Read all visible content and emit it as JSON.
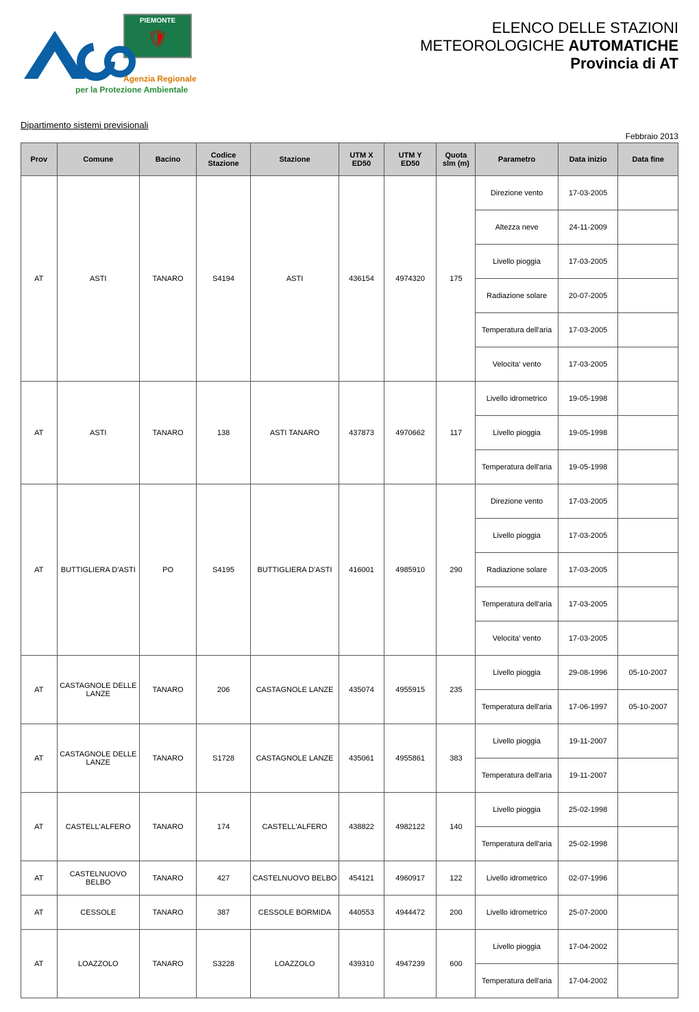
{
  "logo": {
    "flag_label": "PIEMONTE",
    "agency_line1": "Agenzia Regionale",
    "agency_line2": "per la Protezione Ambientale",
    "arpa_fill": "#0b5fa5",
    "flag_bg": "#1a7a4a",
    "text1_color": "#d97800",
    "text2_color": "#2a8c3a"
  },
  "title": {
    "line1": "ELENCO DELLE STAZIONI",
    "line2_normal": "METEOROLOGICHE ",
    "line2_bold": "AUTOMATICHE",
    "line3": "Provincia di AT"
  },
  "department": "Dipartimento sistemi previsionali",
  "period_label": "Febbraio 2013",
  "table": {
    "header_bg": "#cccccc",
    "border_color": "#555555",
    "columns": [
      {
        "key": "prov",
        "label": "Prov"
      },
      {
        "key": "comune",
        "label": "Comune"
      },
      {
        "key": "bacino",
        "label": "Bacino"
      },
      {
        "key": "codice",
        "label": "Codice\nStazione"
      },
      {
        "key": "stazione",
        "label": "Stazione"
      },
      {
        "key": "utmx",
        "label": "UTM X\nED50"
      },
      {
        "key": "utmy",
        "label": "UTM Y\nED50"
      },
      {
        "key": "quota",
        "label": "Quota\nslm (m)"
      },
      {
        "key": "param",
        "label": "Parametro"
      },
      {
        "key": "inizio",
        "label": "Data inizio"
      },
      {
        "key": "fine",
        "label": "Data fine"
      }
    ],
    "stations": [
      {
        "prov": "AT",
        "comune": "ASTI",
        "bacino": "TANARO",
        "codice": "S4194",
        "stazione": "ASTI",
        "utmx": "436154",
        "utmy": "4974320",
        "quota": "175",
        "params": [
          {
            "parametro": "Direzione vento",
            "inizio": "17-03-2005",
            "fine": ""
          },
          {
            "parametro": "Altezza neve",
            "inizio": "24-11-2009",
            "fine": ""
          },
          {
            "parametro": "Livello pioggia",
            "inizio": "17-03-2005",
            "fine": ""
          },
          {
            "parametro": "Radiazione solare",
            "inizio": "20-07-2005",
            "fine": ""
          },
          {
            "parametro": "Temperatura dell'aria",
            "inizio": "17-03-2005",
            "fine": ""
          },
          {
            "parametro": "Velocita' vento",
            "inizio": "17-03-2005",
            "fine": ""
          }
        ]
      },
      {
        "prov": "AT",
        "comune": "ASTI",
        "bacino": "TANARO",
        "codice": "138",
        "stazione": "ASTI TANARO",
        "utmx": "437873",
        "utmy": "4970662",
        "quota": "117",
        "params": [
          {
            "parametro": "Livello idrometrico",
            "inizio": "19-05-1998",
            "fine": ""
          },
          {
            "parametro": "Livello pioggia",
            "inizio": "19-05-1998",
            "fine": ""
          },
          {
            "parametro": "Temperatura dell'aria",
            "inizio": "19-05-1998",
            "fine": ""
          }
        ]
      },
      {
        "prov": "AT",
        "comune": "BUTTIGLIERA D'ASTI",
        "bacino": "PO",
        "codice": "S4195",
        "stazione": "BUTTIGLIERA D'ASTI",
        "utmx": "416001",
        "utmy": "4985910",
        "quota": "290",
        "params": [
          {
            "parametro": "Direzione vento",
            "inizio": "17-03-2005",
            "fine": ""
          },
          {
            "parametro": "Livello pioggia",
            "inizio": "17-03-2005",
            "fine": ""
          },
          {
            "parametro": "Radiazione solare",
            "inizio": "17-03-2005",
            "fine": ""
          },
          {
            "parametro": "Temperatura dell'aria",
            "inizio": "17-03-2005",
            "fine": ""
          },
          {
            "parametro": "Velocita' vento",
            "inizio": "17-03-2005",
            "fine": ""
          }
        ]
      },
      {
        "prov": "AT",
        "comune": "CASTAGNOLE DELLE LANZE",
        "bacino": "TANARO",
        "codice": "206",
        "stazione": "CASTAGNOLE LANZE",
        "utmx": "435074",
        "utmy": "4955915",
        "quota": "235",
        "params": [
          {
            "parametro": "Livello pioggia",
            "inizio": "29-08-1996",
            "fine": "05-10-2007"
          },
          {
            "parametro": "Temperatura dell'aria",
            "inizio": "17-06-1997",
            "fine": "05-10-2007"
          }
        ]
      },
      {
        "prov": "AT",
        "comune": "CASTAGNOLE DELLE LANZE",
        "bacino": "TANARO",
        "codice": "S1728",
        "stazione": "CASTAGNOLE LANZE",
        "utmx": "435061",
        "utmy": "4955861",
        "quota": "383",
        "params": [
          {
            "parametro": "Livello pioggia",
            "inizio": "19-11-2007",
            "fine": ""
          },
          {
            "parametro": "Temperatura dell'aria",
            "inizio": "19-11-2007",
            "fine": ""
          }
        ]
      },
      {
        "prov": "AT",
        "comune": "CASTELL'ALFERO",
        "bacino": "TANARO",
        "codice": "174",
        "stazione": "CASTELL'ALFERO",
        "utmx": "438822",
        "utmy": "4982122",
        "quota": "140",
        "params": [
          {
            "parametro": "Livello pioggia",
            "inizio": "25-02-1998",
            "fine": ""
          },
          {
            "parametro": "Temperatura dell'aria",
            "inizio": "25-02-1998",
            "fine": ""
          }
        ]
      },
      {
        "prov": "AT",
        "comune": "CASTELNUOVO BELBO",
        "bacino": "TANARO",
        "codice": "427",
        "stazione": "CASTELNUOVO BELBO",
        "utmx": "454121",
        "utmy": "4960917",
        "quota": "122",
        "params": [
          {
            "parametro": "Livello idrometrico",
            "inizio": "02-07-1996",
            "fine": ""
          }
        ]
      },
      {
        "prov": "AT",
        "comune": "CESSOLE",
        "bacino": "TANARO",
        "codice": "387",
        "stazione": "CESSOLE BORMIDA",
        "utmx": "440553",
        "utmy": "4944472",
        "quota": "200",
        "params": [
          {
            "parametro": "Livello idrometrico",
            "inizio": "25-07-2000",
            "fine": ""
          }
        ]
      },
      {
        "prov": "AT",
        "comune": "LOAZZOLO",
        "bacino": "TANARO",
        "codice": "S3228",
        "stazione": "LOAZZOLO",
        "utmx": "439310",
        "utmy": "4947239",
        "quota": "600",
        "params": [
          {
            "parametro": "Livello pioggia",
            "inizio": "17-04-2002",
            "fine": ""
          },
          {
            "parametro": "Temperatura dell'aria",
            "inizio": "17-04-2002",
            "fine": ""
          }
        ]
      }
    ]
  }
}
